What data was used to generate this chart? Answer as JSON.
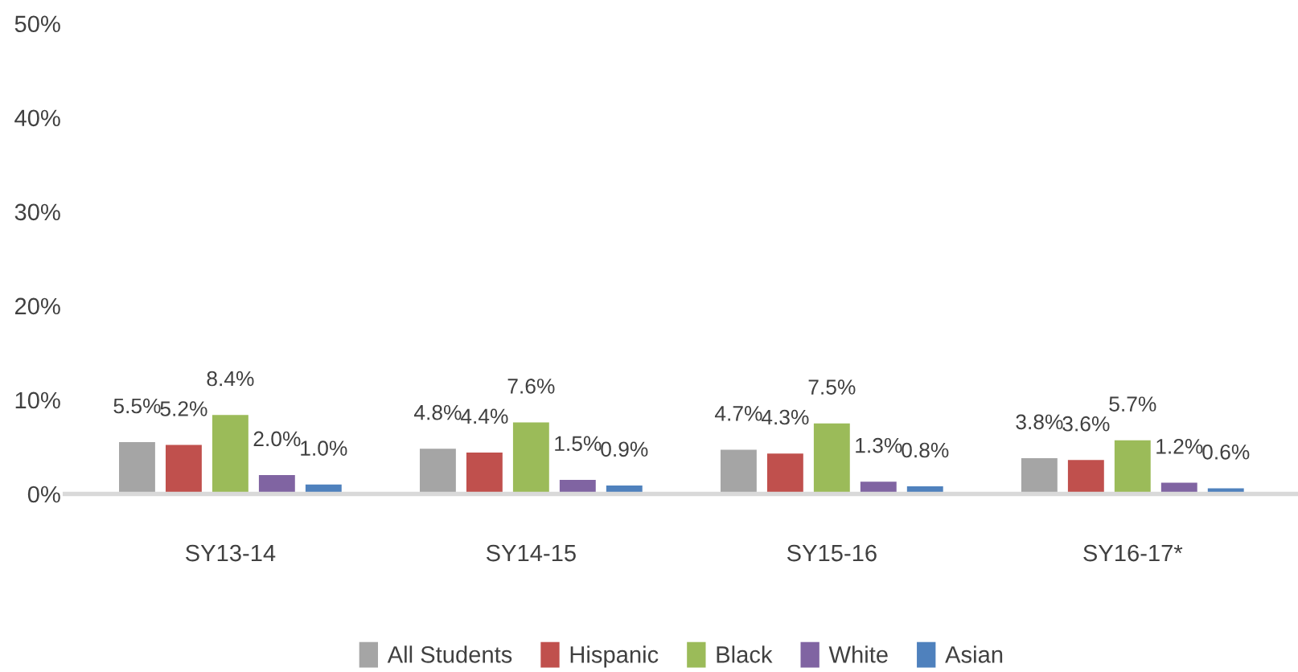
{
  "chart_data": {
    "type": "bar",
    "categories": [
      "SY13-14",
      "SY14-15",
      "SY15-16",
      "SY16-17*"
    ],
    "series": [
      {
        "name": "All Students",
        "color": "#a5a5a5",
        "values": [
          5.5,
          4.8,
          4.7,
          3.8
        ],
        "value_labels": [
          "5.5%",
          "4.8%",
          "4.7%",
          "3.8%"
        ]
      },
      {
        "name": "Hispanic",
        "color": "#c0504d",
        "values": [
          5.2,
          4.4,
          4.3,
          3.6
        ],
        "value_labels": [
          "5.2%",
          "4.4%",
          "4.3%",
          "3.6%"
        ]
      },
      {
        "name": "Black",
        "color": "#9bbb59",
        "values": [
          8.4,
          7.6,
          7.5,
          5.7
        ],
        "value_labels": [
          "8.4%",
          "7.6%",
          "7.5%",
          "5.7%"
        ]
      },
      {
        "name": "White",
        "color": "#8064a2",
        "values": [
          2.0,
          1.5,
          1.3,
          1.2
        ],
        "value_labels": [
          "2.0%",
          "1.5%",
          "1.3%",
          "1.2%"
        ]
      },
      {
        "name": "Asian",
        "color": "#4f81bd",
        "values": [
          1.0,
          0.9,
          0.8,
          0.6
        ],
        "value_labels": [
          "1.0%",
          "0.9%",
          "0.8%",
          "0.6%"
        ]
      }
    ],
    "ylim": [
      0,
      50
    ],
    "yticks": [
      {
        "value": 0,
        "label": "0%"
      },
      {
        "value": 10,
        "label": "10%"
      },
      {
        "value": 20,
        "label": "20%"
      },
      {
        "value": 30,
        "label": "30%"
      },
      {
        "value": 40,
        "label": "40%"
      },
      {
        "value": 50,
        "label": "50%"
      }
    ],
    "grid": false,
    "legend": "bottom"
  }
}
